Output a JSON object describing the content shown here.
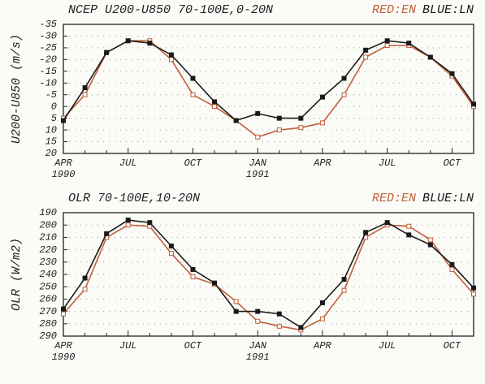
{
  "chart_data": [
    {
      "type": "line",
      "title": "NCEP U200-U850 70-100E,0-20N",
      "y_label": "U200-U850 (m/s)",
      "categories": [
        "APR",
        null,
        null,
        "JUL",
        null,
        null,
        "OCT",
        null,
        null,
        "JAN",
        null,
        null,
        "APR",
        null,
        null,
        "JUL",
        null,
        null,
        "OCT",
        null
      ],
      "category_years": [
        "1990",
        null,
        null,
        null,
        null,
        null,
        null,
        null,
        null,
        "1991",
        null,
        null,
        null,
        null,
        null,
        null,
        null,
        null,
        null,
        null
      ],
      "series": [
        {
          "name": "RED:EN",
          "color": "#c0603a",
          "marker": "open",
          "values": [
            5,
            -5,
            -23,
            -28,
            -28,
            -20,
            -5,
            0,
            6,
            13,
            10,
            9,
            7,
            -5,
            -21,
            -26,
            -26,
            -21,
            -13,
            0
          ]
        },
        {
          "name": "BLUE:LN",
          "color": "#1a1a1a",
          "marker": "filled",
          "values": [
            6,
            -8,
            -23,
            -28,
            -27,
            -22,
            -12,
            -2,
            6,
            3,
            5,
            5,
            -4,
            -12,
            -24,
            -28,
            -27,
            -21,
            -14,
            -1
          ]
        }
      ],
      "ylim": [
        -35,
        20
      ],
      "y_inverted": true,
      "yticks": [
        -35,
        -30,
        -25,
        -20,
        -15,
        -10,
        -5,
        0,
        5,
        10,
        15,
        20
      ],
      "grid": true
    },
    {
      "type": "line",
      "title": "OLR 70-100E,10-20N",
      "y_label": "OLR (W/m2)",
      "categories": [
        "APR",
        null,
        null,
        "JUL",
        null,
        null,
        "OCT",
        null,
        null,
        "JAN",
        null,
        null,
        "APR",
        null,
        null,
        "JUL",
        null,
        null,
        "OCT",
        null
      ],
      "category_years": [
        "1990",
        null,
        null,
        null,
        null,
        null,
        null,
        null,
        null,
        "1991",
        null,
        null,
        null,
        null,
        null,
        null,
        null,
        null,
        null,
        null
      ],
      "series": [
        {
          "name": "RED:EN",
          "color": "#c0603a",
          "marker": "open",
          "values": [
            272,
            252,
            210,
            200,
            201,
            223,
            242,
            248,
            262,
            278,
            282,
            285,
            276,
            253,
            210,
            200,
            201,
            212,
            236,
            256
          ]
        },
        {
          "name": "BLUE:LN",
          "color": "#1a1a1a",
          "marker": "filled",
          "values": [
            268,
            243,
            207,
            196,
            198,
            217,
            236,
            247,
            270,
            270,
            272,
            283,
            263,
            244,
            206,
            198,
            208,
            216,
            232,
            251
          ]
        }
      ],
      "ylim": [
        190,
        290
      ],
      "y_inverted": true,
      "yticks": [
        190,
        200,
        210,
        220,
        230,
        240,
        250,
        260,
        270,
        280,
        290
      ],
      "grid": true
    }
  ]
}
